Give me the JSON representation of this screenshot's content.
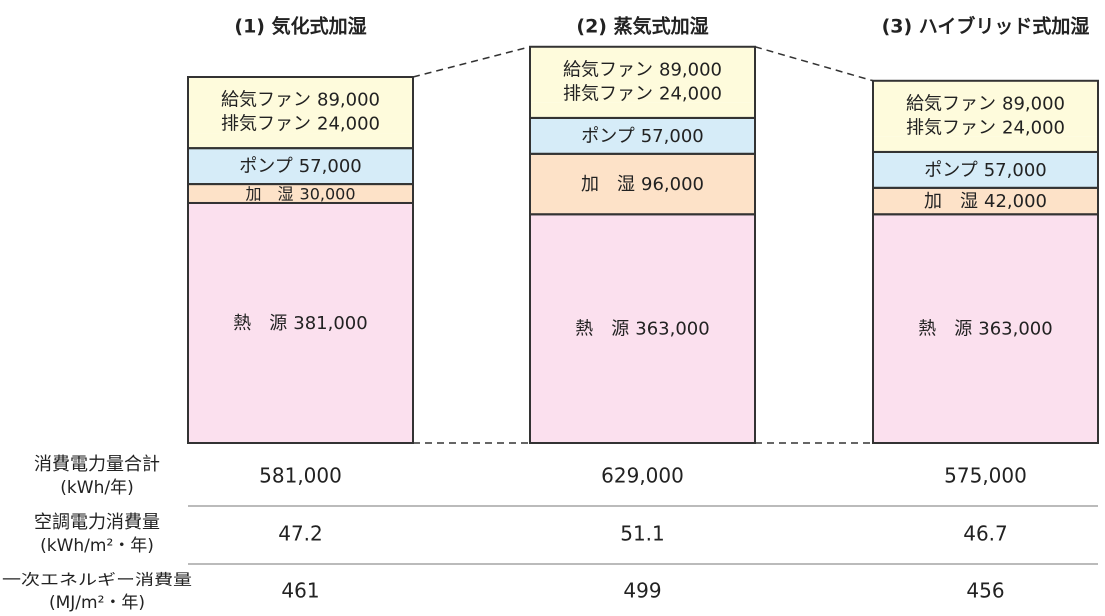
{
  "chart_data": {
    "type": "stacked-bar",
    "categories": [
      "(1) 気化式加湿",
      "(2) 蒸気式加湿",
      "(3) ハイブリッド式加湿"
    ],
    "series": [
      {
        "name": "熱　源",
        "color": "#fbe0ee",
        "values": [
          381000,
          363000,
          363000
        ],
        "value_labels": [
          "381,000",
          "363,000",
          "363,000"
        ]
      },
      {
        "name": "加　湿",
        "color": "#fde2c8",
        "values": [
          30000,
          96000,
          42000
        ],
        "value_labels": [
          "30,000",
          "96,000",
          "42,000"
        ]
      },
      {
        "name": "ポンプ",
        "color": "#d6ecf8",
        "values": [
          57000,
          57000,
          57000
        ],
        "value_labels": [
          "57,000",
          "57,000",
          "57,000"
        ]
      },
      {
        "name": "排気ファン",
        "color": "#fefbdc",
        "values": [
          24000,
          24000,
          24000
        ],
        "value_labels": [
          "24,000",
          "24,000",
          "24,000"
        ]
      },
      {
        "name": "給気ファン",
        "color": "#fefbdc",
        "values": [
          89000,
          89000,
          89000
        ],
        "value_labels": [
          "89,000",
          "89,000",
          "89,000"
        ]
      }
    ]
  },
  "table": {
    "rows": [
      {
        "label": "消費電力量合計",
        "unit": "(kWh/年)",
        "values": [
          "581,000",
          "629,000",
          "575,000"
        ]
      },
      {
        "label": "空調電力消費量",
        "unit": "(kWh/m²・年)",
        "values": [
          "47.2",
          "51.1",
          "46.7"
        ]
      },
      {
        "label": "一次エネルギー消費量",
        "unit": "(MJ/m²・年)",
        "values": [
          "461",
          "499",
          "456"
        ]
      }
    ]
  }
}
